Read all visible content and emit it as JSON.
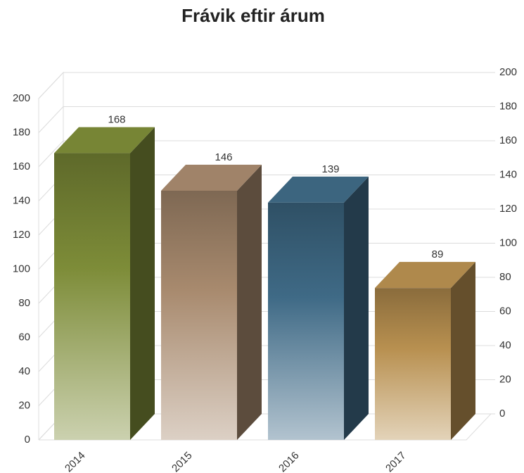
{
  "chart_data": {
    "type": "bar3d",
    "title": "Frávik eftir árum",
    "categories": [
      "2014",
      "2015",
      "2016",
      "2017"
    ],
    "values": [
      168,
      146,
      139,
      89
    ],
    "colors": [
      "#7d8c38",
      "#a88a6e",
      "#3f6a86",
      "#b89050"
    ],
    "ylim": [
      0,
      200
    ],
    "yticks": [
      0,
      20,
      40,
      60,
      80,
      100,
      120,
      140,
      160,
      180,
      200
    ],
    "y2lim": [
      0,
      200
    ],
    "y2ticks": [
      0,
      20,
      40,
      60,
      80,
      100,
      120,
      140,
      160,
      180,
      200
    ],
    "grid": true
  }
}
